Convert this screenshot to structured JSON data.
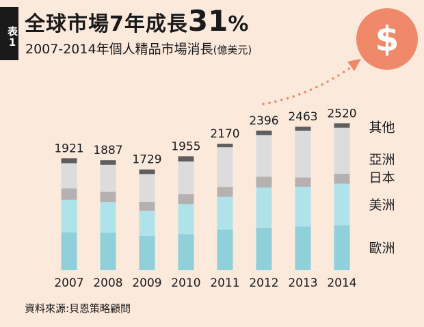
{
  "header": {
    "tag": "表1",
    "title_prefix": "全球市場7年成長",
    "title_number": "31",
    "title_suffix": "%",
    "subtitle": "2007-2014年個人精品市場消長",
    "subtitle_unit": "(億美元)"
  },
  "dollar_icon": {
    "symbol": "$",
    "color": "#f0896a"
  },
  "colors": {
    "background": "#fbe9dc",
    "europe": "#8fd0db",
    "americas": "#b0e2ea",
    "japan": "#b5b1b1",
    "asia": "#dcdcdc",
    "other": "#5e5e5e",
    "arrow": "#f0896a"
  },
  "chart_data": {
    "type": "bar",
    "stacked": true,
    "title": "全球市場7年成長31%",
    "subtitle": "2007-2014年個人精品市場消長 (億美元)",
    "categories": [
      "2007",
      "2008",
      "2009",
      "2010",
      "2011",
      "2012",
      "2013",
      "2014"
    ],
    "totals": [
      1921,
      1887,
      1729,
      1955,
      2170,
      2396,
      2463,
      2520
    ],
    "series": [
      {
        "name": "歐洲",
        "values": [
          650,
          640,
          590,
          620,
          700,
          730,
          750,
          770
        ]
      },
      {
        "name": "美洲",
        "values": [
          560,
          530,
          430,
          515,
          560,
          690,
          680,
          715
        ]
      },
      {
        "name": "日本",
        "values": [
          195,
          175,
          155,
          170,
          170,
          185,
          160,
          170
        ]
      },
      {
        "name": "亞洲",
        "values": [
          430,
          465,
          475,
          560,
          680,
          715,
          805,
          790
        ]
      },
      {
        "name": "其他",
        "values": [
          86,
          77,
          79,
          90,
          60,
          76,
          68,
          75
        ]
      }
    ],
    "ylim": [
      0,
      2700
    ],
    "xlabel": "",
    "ylabel": "",
    "grid": false,
    "legend": "right"
  },
  "source": "資料來源:貝恩策略顧問"
}
